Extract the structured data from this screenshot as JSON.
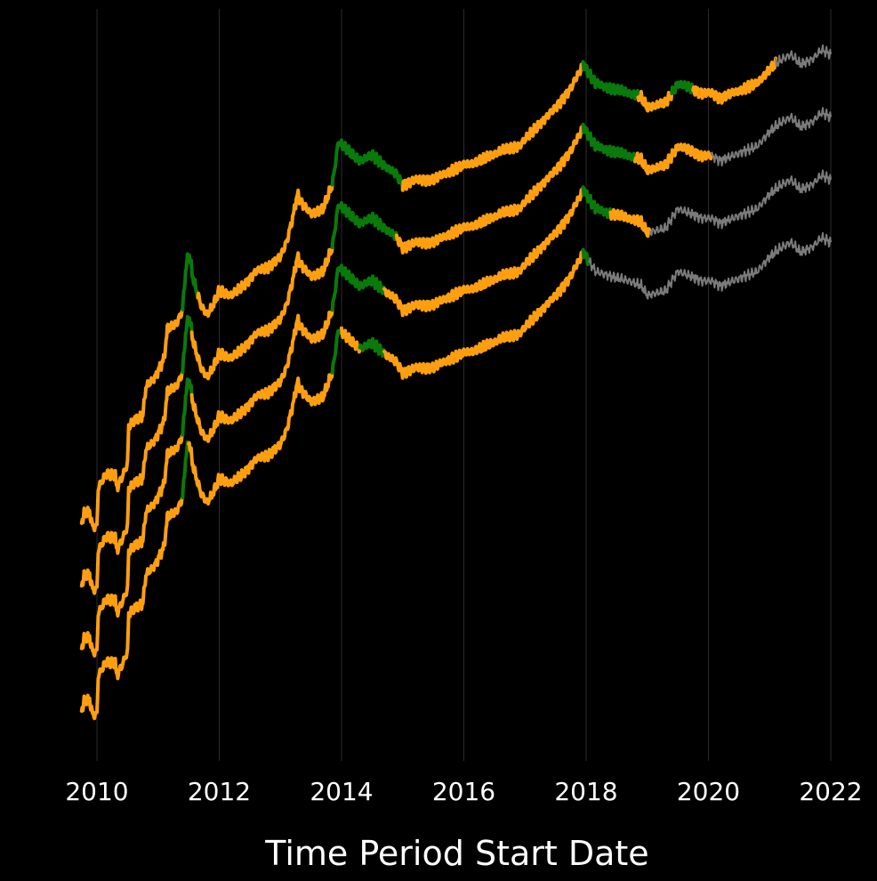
{
  "chart_data": {
    "type": "line",
    "title": "",
    "xlabel": "Time Period Start Date",
    "ylabel": "",
    "xlim": [
      2009.75,
      2022.0
    ],
    "x_ticks": [
      "2010",
      "2012",
      "2014",
      "2016",
      "2018",
      "2020",
      "2022"
    ],
    "x_tick_values": [
      2010,
      2012,
      2014,
      2016,
      2018,
      2020,
      2022
    ],
    "grid": "vertical",
    "legend": "none",
    "colors": {
      "background": "#000000",
      "orange": "#ff9f10",
      "green": "#0a7a0a",
      "gray": "#7a7a7a",
      "grid": "#2b2b2b",
      "text": "#ffffff"
    },
    "base_curve": [
      [
        2009.75,
        0.0
      ],
      [
        2009.8,
        0.02
      ],
      [
        2009.88,
        0.02
      ],
      [
        2009.93,
        -0.01
      ],
      [
        2010.0,
        -0.01
      ],
      [
        2010.02,
        0.07
      ],
      [
        2010.15,
        0.1
      ],
      [
        2010.3,
        0.1
      ],
      [
        2010.32,
        0.07
      ],
      [
        2010.4,
        0.09
      ],
      [
        2010.5,
        0.12
      ],
      [
        2010.52,
        0.2
      ],
      [
        2010.6,
        0.21
      ],
      [
        2010.75,
        0.22
      ],
      [
        2010.8,
        0.28
      ],
      [
        2010.95,
        0.3
      ],
      [
        2011.1,
        0.34
      ],
      [
        2011.15,
        0.4
      ],
      [
        2011.3,
        0.41
      ],
      [
        2011.4,
        0.44
      ],
      [
        2011.45,
        0.52
      ],
      [
        2011.5,
        0.56
      ],
      [
        2011.58,
        0.5
      ],
      [
        2011.7,
        0.45
      ],
      [
        2011.8,
        0.43
      ],
      [
        2011.9,
        0.45
      ],
      [
        2012.0,
        0.48
      ],
      [
        2012.2,
        0.47
      ],
      [
        2012.4,
        0.49
      ],
      [
        2012.6,
        0.52
      ],
      [
        2012.8,
        0.53
      ],
      [
        2013.0,
        0.55
      ],
      [
        2013.1,
        0.58
      ],
      [
        2013.2,
        0.63
      ],
      [
        2013.28,
        0.68
      ],
      [
        2013.35,
        0.66
      ],
      [
        2013.5,
        0.64
      ],
      [
        2013.7,
        0.65
      ],
      [
        2013.85,
        0.7
      ],
      [
        2013.95,
        0.79
      ],
      [
        2014.1,
        0.77
      ],
      [
        2014.3,
        0.75
      ],
      [
        2014.5,
        0.76
      ],
      [
        2014.7,
        0.74
      ],
      [
        2014.9,
        0.72
      ],
      [
        2015.0,
        0.7
      ],
      [
        2015.2,
        0.71
      ],
      [
        2015.5,
        0.71
      ],
      [
        2015.8,
        0.73
      ],
      [
        2016.0,
        0.74
      ],
      [
        2016.3,
        0.75
      ],
      [
        2016.6,
        0.77
      ],
      [
        2016.9,
        0.78
      ],
      [
        2017.2,
        0.82
      ],
      [
        2017.5,
        0.86
      ],
      [
        2017.75,
        0.9
      ],
      [
        2017.95,
        0.95
      ],
      [
        2018.0,
        0.94
      ],
      [
        2018.15,
        0.91
      ],
      [
        2018.4,
        0.9
      ],
      [
        2018.7,
        0.89
      ],
      [
        2018.9,
        0.88
      ],
      [
        2019.0,
        0.86
      ],
      [
        2019.3,
        0.87
      ],
      [
        2019.5,
        0.91
      ],
      [
        2019.7,
        0.9
      ],
      [
        2019.9,
        0.89
      ],
      [
        2020.05,
        0.89
      ],
      [
        2020.2,
        0.88
      ],
      [
        2020.4,
        0.89
      ],
      [
        2020.6,
        0.9
      ],
      [
        2020.8,
        0.91
      ],
      [
        2021.0,
        0.94
      ],
      [
        2021.2,
        0.96
      ],
      [
        2021.35,
        0.97
      ],
      [
        2021.5,
        0.95
      ],
      [
        2021.7,
        0.96
      ],
      [
        2021.85,
        0.98
      ],
      [
        2022.0,
        0.97
      ]
    ],
    "series": [
      {
        "offset": 0.0,
        "segments": [
          {
            "from": 2009.75,
            "to": 2011.4,
            "color": "orange"
          },
          {
            "from": 2011.4,
            "to": 2011.65,
            "color": "green"
          },
          {
            "from": 2011.65,
            "to": 2013.3,
            "color": "orange"
          },
          {
            "from": 2013.3,
            "to": 2013.85,
            "color": "orange"
          },
          {
            "from": 2013.85,
            "to": 2015.0,
            "color": "green"
          },
          {
            "from": 2015.0,
            "to": 2017.95,
            "color": "orange"
          },
          {
            "from": 2017.95,
            "to": 2018.85,
            "color": "green"
          },
          {
            "from": 2018.85,
            "to": 2019.4,
            "color": "orange"
          },
          {
            "from": 2019.4,
            "to": 2019.75,
            "color": "green"
          },
          {
            "from": 2019.75,
            "to": 2021.1,
            "color": "orange"
          },
          {
            "from": 2021.1,
            "to": 2022.0,
            "color": "gray"
          }
        ]
      },
      {
        "offset": -0.13,
        "segments": [
          {
            "from": 2009.75,
            "to": 2011.4,
            "color": "orange"
          },
          {
            "from": 2011.4,
            "to": 2011.55,
            "color": "green"
          },
          {
            "from": 2011.55,
            "to": 2013.85,
            "color": "orange"
          },
          {
            "from": 2013.85,
            "to": 2014.9,
            "color": "green"
          },
          {
            "from": 2014.9,
            "to": 2017.95,
            "color": "orange"
          },
          {
            "from": 2017.95,
            "to": 2018.8,
            "color": "green"
          },
          {
            "from": 2018.8,
            "to": 2020.05,
            "color": "orange"
          },
          {
            "from": 2020.05,
            "to": 2022.0,
            "color": "gray"
          }
        ]
      },
      {
        "offset": -0.26,
        "segments": [
          {
            "from": 2009.75,
            "to": 2011.4,
            "color": "orange"
          },
          {
            "from": 2011.4,
            "to": 2011.55,
            "color": "green"
          },
          {
            "from": 2011.55,
            "to": 2013.85,
            "color": "orange"
          },
          {
            "from": 2013.85,
            "to": 2014.7,
            "color": "green"
          },
          {
            "from": 2014.7,
            "to": 2017.95,
            "color": "orange"
          },
          {
            "from": 2017.95,
            "to": 2018.4,
            "color": "green"
          },
          {
            "from": 2018.4,
            "to": 2019.05,
            "color": "orange"
          },
          {
            "from": 2019.05,
            "to": 2022.0,
            "color": "gray"
          }
        ]
      },
      {
        "offset": -0.39,
        "segments": [
          {
            "from": 2009.75,
            "to": 2011.4,
            "color": "orange"
          },
          {
            "from": 2011.4,
            "to": 2011.5,
            "color": "green"
          },
          {
            "from": 2011.5,
            "to": 2013.85,
            "color": "orange"
          },
          {
            "from": 2013.85,
            "to": 2014.0,
            "color": "green"
          },
          {
            "from": 2014.0,
            "to": 2014.3,
            "color": "orange"
          },
          {
            "from": 2014.3,
            "to": 2014.7,
            "color": "green"
          },
          {
            "from": 2014.7,
            "to": 2017.95,
            "color": "orange"
          },
          {
            "from": 2017.95,
            "to": 2018.05,
            "color": "green"
          },
          {
            "from": 2018.05,
            "to": 2022.0,
            "color": "gray"
          }
        ]
      }
    ]
  }
}
